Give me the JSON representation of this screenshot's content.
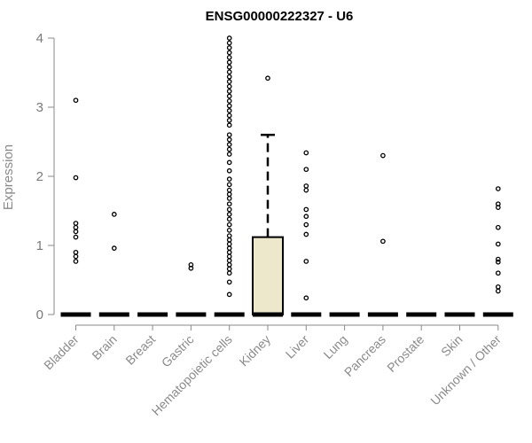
{
  "chart_data": {
    "type": "boxplot",
    "title": "ENSG00000222327 - U6",
    "ylabel": "Expression",
    "xlabel": "",
    "ylim": [
      0,
      4
    ],
    "yticks": [
      0,
      1,
      2,
      3,
      4
    ],
    "grid": false,
    "categories": [
      "Bladder",
      "Brain",
      "Breast",
      "Gastric",
      "Hematopoietic cells",
      "Kidney",
      "Liver",
      "Lung",
      "Pancreas",
      "Prostate",
      "Skin",
      "Unknown / Other"
    ],
    "boxes": [
      {
        "name": "Bladder",
        "q1": 0,
        "median": 0,
        "q3": 0,
        "whisker_low": 0,
        "whisker_high": 0,
        "outliers": [
          3.1,
          1.98,
          1.32,
          1.26,
          1.2,
          1.12,
          0.9,
          0.84,
          0.77
        ]
      },
      {
        "name": "Brain",
        "q1": 0,
        "median": 0,
        "q3": 0,
        "whisker_low": 0,
        "whisker_high": 0,
        "outliers": [
          1.45,
          0.96
        ]
      },
      {
        "name": "Breast",
        "q1": 0,
        "median": 0,
        "q3": 0,
        "whisker_low": 0,
        "whisker_high": 0,
        "outliers": []
      },
      {
        "name": "Gastric",
        "q1": 0,
        "median": 0,
        "q3": 0,
        "whisker_low": 0,
        "whisker_high": 0,
        "outliers": [
          0.72,
          0.67
        ]
      },
      {
        "name": "Hematopoietic cells",
        "q1": 0,
        "median": 0,
        "q3": 0,
        "whisker_low": 0,
        "whisker_high": 0,
        "outliers": [
          4.0,
          3.93,
          3.86,
          3.79,
          3.72,
          3.65,
          3.58,
          3.51,
          3.44,
          3.37,
          3.3,
          3.23,
          3.16,
          3.09,
          3.02,
          2.95,
          2.88,
          2.81,
          2.74,
          2.6,
          2.53,
          2.46,
          2.39,
          2.32,
          2.2,
          2.08,
          1.96,
          1.88,
          1.8,
          1.74,
          1.68,
          1.6,
          1.52,
          1.45,
          1.38,
          1.3,
          1.22,
          1.14,
          1.08,
          1.02,
          0.96,
          0.9,
          0.84,
          0.78,
          0.72,
          0.66,
          0.6,
          0.47,
          0.29
        ]
      },
      {
        "name": "Kidney",
        "q1": 0,
        "median": 0,
        "q3": 1.12,
        "whisker_low": 0,
        "whisker_high": 2.6,
        "outliers": [
          3.42
        ]
      },
      {
        "name": "Liver",
        "q1": 0,
        "median": 0,
        "q3": 0,
        "whisker_low": 0,
        "whisker_high": 0,
        "outliers": [
          2.34,
          2.1,
          1.86,
          1.8,
          1.52,
          1.42,
          1.3,
          1.16,
          0.77,
          0.24
        ]
      },
      {
        "name": "Lung",
        "q1": 0,
        "median": 0,
        "q3": 0,
        "whisker_low": 0,
        "whisker_high": 0,
        "outliers": []
      },
      {
        "name": "Pancreas",
        "q1": 0,
        "median": 0,
        "q3": 0,
        "whisker_low": 0,
        "whisker_high": 0,
        "outliers": [
          2.3,
          1.06
        ]
      },
      {
        "name": "Prostate",
        "q1": 0,
        "median": 0,
        "q3": 0,
        "whisker_low": 0,
        "whisker_high": 0,
        "outliers": []
      },
      {
        "name": "Skin",
        "q1": 0,
        "median": 0,
        "q3": 0,
        "whisker_low": 0,
        "whisker_high": 0,
        "outliers": []
      },
      {
        "name": "Unknown / Other",
        "q1": 0,
        "median": 0,
        "q3": 0,
        "whisker_low": 0,
        "whisker_high": 0,
        "outliers": [
          1.82,
          1.6,
          1.55,
          1.26,
          1.02,
          0.8,
          0.76,
          0.6,
          0.4,
          0.34
        ]
      }
    ],
    "colors": {
      "box_fill": "#ede7cc",
      "box_stroke": "#000000",
      "axis": "#8a8a8a",
      "outlier": "#000000"
    }
  }
}
